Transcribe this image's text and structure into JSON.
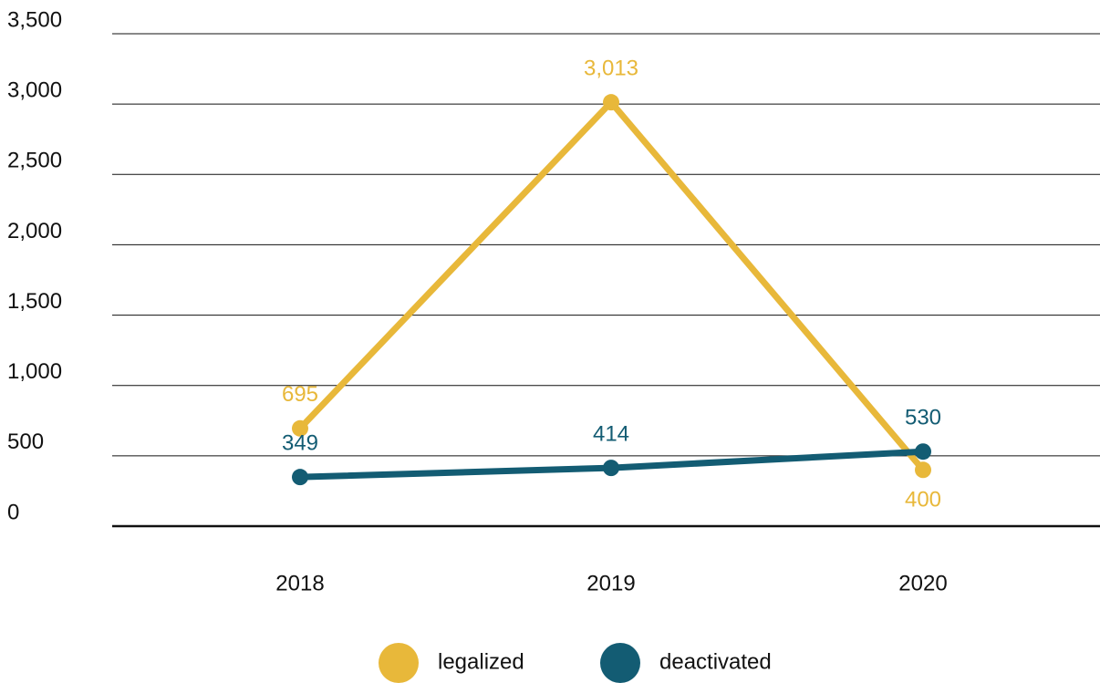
{
  "chart_data": {
    "type": "line",
    "categories": [
      "2018",
      "2019",
      "2020"
    ],
    "series": [
      {
        "name": "legalized",
        "color": "#e8b83a",
        "values": [
          695,
          3013,
          400
        ],
        "value_labels": [
          "695",
          "3,013",
          "400"
        ]
      },
      {
        "name": "deactivated",
        "color": "#135c73",
        "values": [
          349,
          414,
          530
        ]
      }
    ],
    "ylim": [
      0,
      3500
    ],
    "yticks": [
      0,
      500,
      {
        "value": 1000,
        "label": "1,000"
      },
      {
        "value": 1500,
        "label": "1,500"
      },
      {
        "value": 2000,
        "label": "2,000"
      },
      {
        "value": 2500,
        "label": "2,500"
      },
      {
        "value": 3000,
        "label": "3,000"
      },
      {
        "value": 3500,
        "label": "3,500"
      }
    ],
    "grid": true,
    "legend": "bottom"
  }
}
